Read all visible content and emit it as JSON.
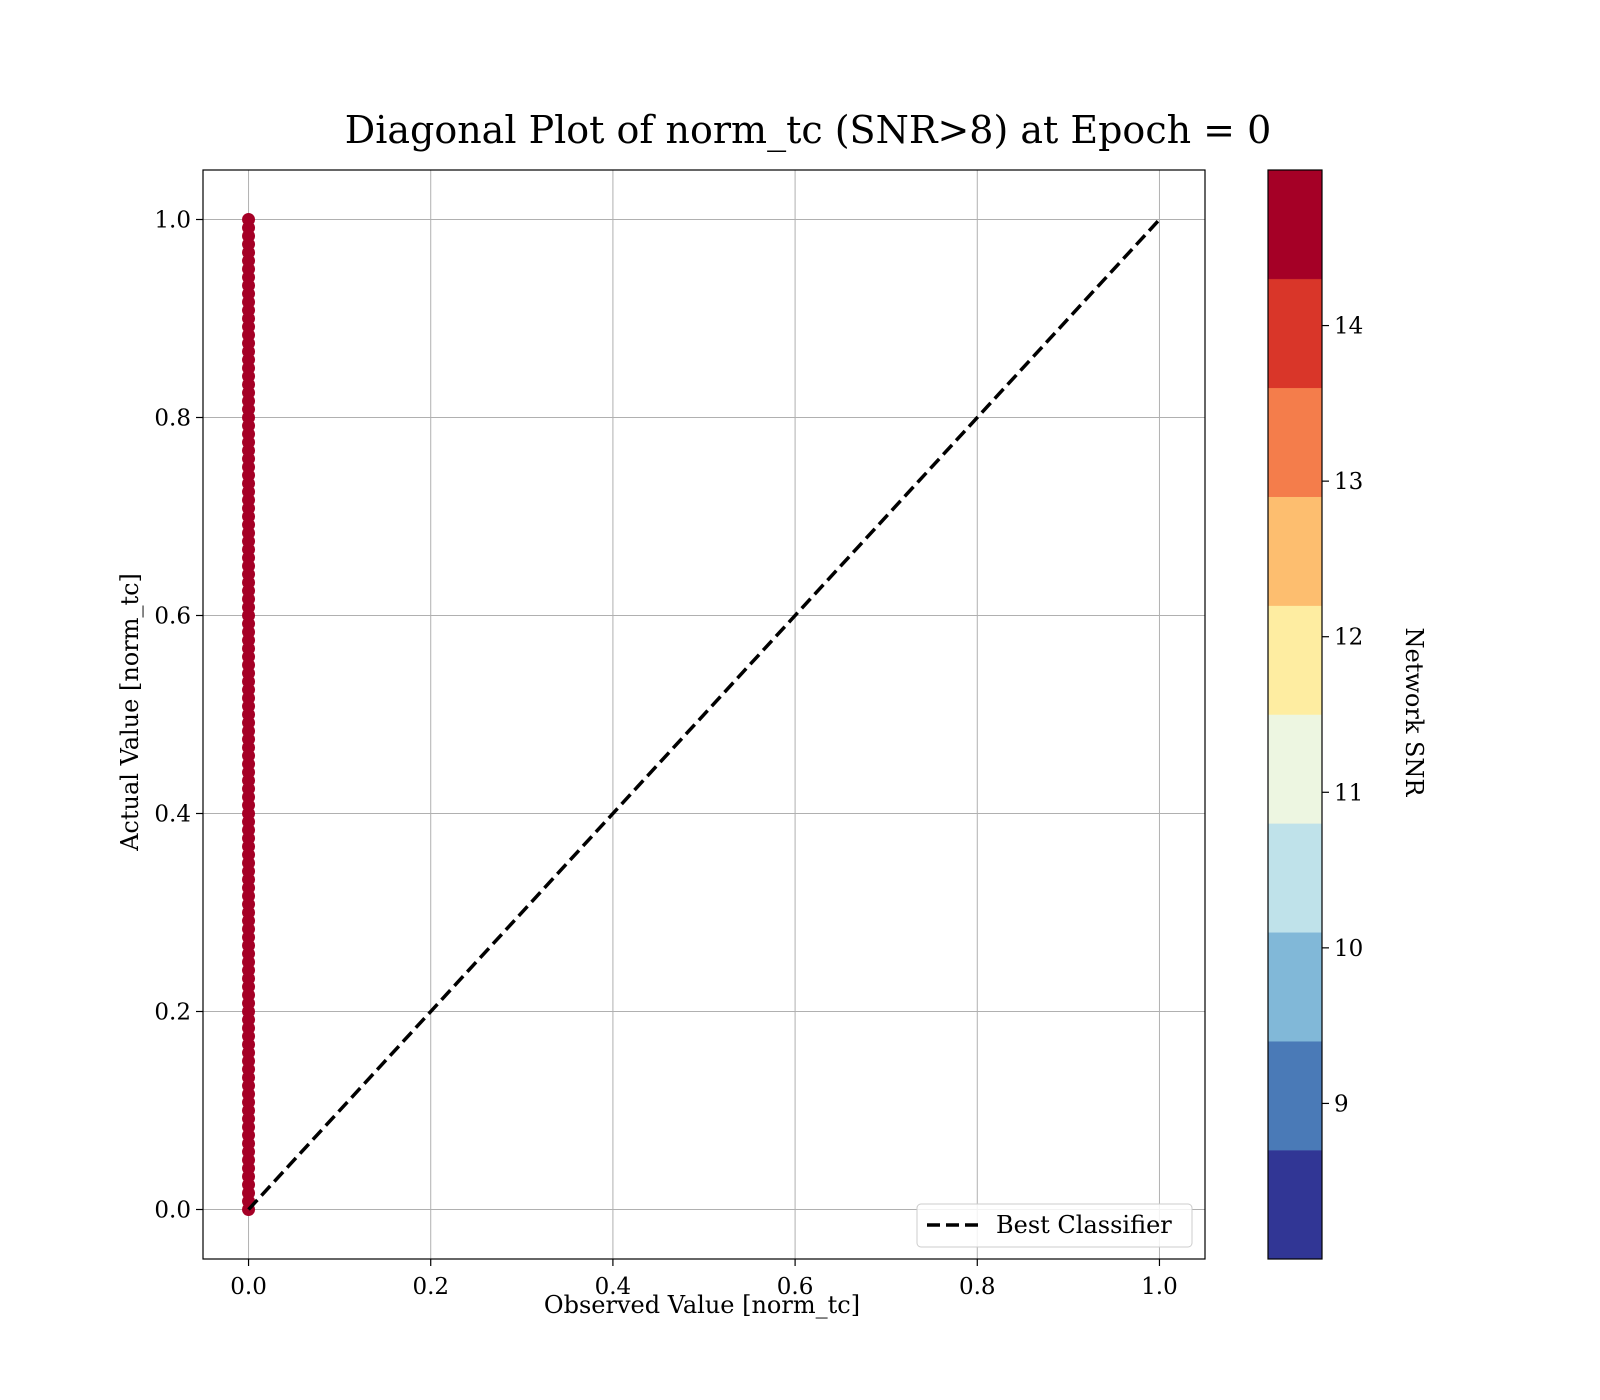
{
  "chart_data": {
    "type": "scatter",
    "title": "Diagonal Plot of norm_tc (SNR>8) at Epoch = 0",
    "xlabel": "Observed Value [norm_tc]",
    "ylabel": "Actual Value [norm_tc]",
    "xlim": [
      -0.05,
      1.05
    ],
    "ylim": [
      -0.05,
      1.05
    ],
    "x_ticks": [
      "0.0",
      "0.2",
      "0.4",
      "0.6",
      "0.8",
      "1.0"
    ],
    "y_ticks": [
      "0.0",
      "0.2",
      "0.4",
      "0.6",
      "0.8",
      "1.0"
    ],
    "grid": true,
    "scatter": {
      "x": 0.0,
      "y_range": [
        0.0,
        1.0
      ],
      "color": "#a50026",
      "snr": 14.5
    },
    "reference_line": {
      "name": "Best Classifier",
      "x": [
        0.0,
        1.0
      ],
      "y": [
        0.0,
        1.0
      ],
      "style": "dashed",
      "color": "#000000"
    },
    "legend": {
      "placement": "lower-right",
      "entries": [
        "Best Classifier"
      ]
    },
    "colorbar": {
      "label": "Network SNR",
      "range": [
        8.0,
        15.0
      ],
      "ticks": [
        "9",
        "10",
        "11",
        "12",
        "13",
        "14"
      ],
      "bins": [
        {
          "from": 8.0,
          "to": 8.7,
          "color": "#313695"
        },
        {
          "from": 8.7,
          "to": 9.4,
          "color": "#4a7ab7"
        },
        {
          "from": 9.4,
          "to": 10.1,
          "color": "#81b8d8"
        },
        {
          "from": 10.1,
          "to": 10.8,
          "color": "#bfe2ea"
        },
        {
          "from": 10.8,
          "to": 11.5,
          "color": "#edf6e1"
        },
        {
          "from": 11.5,
          "to": 12.2,
          "color": "#feeda1"
        },
        {
          "from": 12.2,
          "to": 12.9,
          "color": "#fdbe6f"
        },
        {
          "from": 12.9,
          "to": 13.6,
          "color": "#f47d4b"
        },
        {
          "from": 13.6,
          "to": 14.3,
          "color": "#d93629"
        },
        {
          "from": 14.3,
          "to": 15.0,
          "color": "#a50026"
        }
      ]
    }
  }
}
